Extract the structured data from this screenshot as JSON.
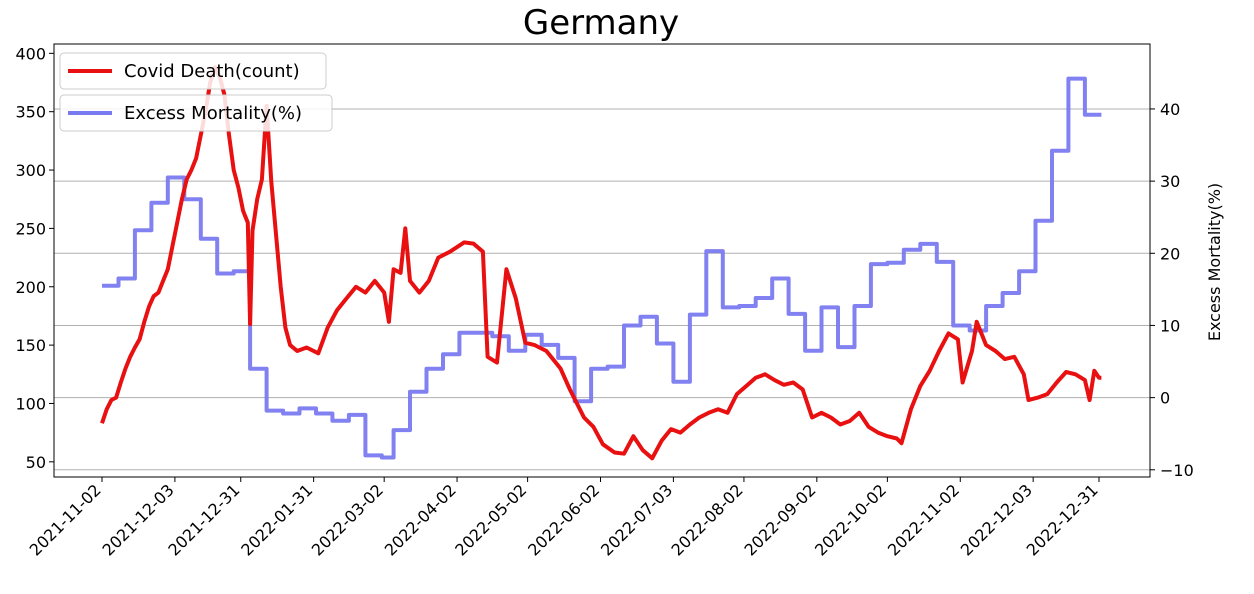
{
  "chart_data": {
    "type": "line",
    "title": "Germany",
    "xlabel": "",
    "ylabel_left": "",
    "ylabel_right": "Excess Mortality(%)",
    "ylim_left": [
      37,
      408
    ],
    "ylim_right": [
      -11,
      49
    ],
    "yticks_left": [
      50,
      100,
      150,
      200,
      250,
      300,
      350,
      400
    ],
    "yticks_right": [
      -10,
      0,
      10,
      20,
      30,
      40
    ],
    "grid": "horizontal gridlines at right-axis ticks",
    "legend_placement": "top-left",
    "x_tick_labels": [
      "2021-11-02",
      "2021-12-03",
      "2021-12-31",
      "2022-01-31",
      "2022-03-02",
      "2022-04-02",
      "2022-05-02",
      "2022-06-02",
      "2022-07-03",
      "2022-08-02",
      "2022-09-02",
      "2022-10-02",
      "2022-11-02",
      "2022-12-03",
      "2022-12-31"
    ],
    "series": [
      {
        "name": "Covid Death(count)",
        "axis": "left",
        "color": "#e81010",
        "points": [
          [
            "2021-11-02",
            83
          ],
          [
            "2021-11-04",
            95
          ],
          [
            "2021-11-06",
            103
          ],
          [
            "2021-11-08",
            105
          ],
          [
            "2021-11-10",
            118
          ],
          [
            "2021-11-12",
            130
          ],
          [
            "2021-11-14",
            140
          ],
          [
            "2021-11-16",
            148
          ],
          [
            "2021-11-18",
            155
          ],
          [
            "2021-11-20",
            170
          ],
          [
            "2021-11-22",
            183
          ],
          [
            "2021-11-24",
            192
          ],
          [
            "2021-11-26",
            195
          ],
          [
            "2021-11-28",
            205
          ],
          [
            "2021-11-30",
            215
          ],
          [
            "2021-12-02",
            235
          ],
          [
            "2021-12-04",
            255
          ],
          [
            "2021-12-06",
            275
          ],
          [
            "2021-12-08",
            292
          ],
          [
            "2021-12-10",
            300
          ],
          [
            "2021-12-12",
            310
          ],
          [
            "2021-12-14",
            330
          ],
          [
            "2021-12-16",
            350
          ],
          [
            "2021-12-18",
            375
          ],
          [
            "2021-12-20",
            388
          ],
          [
            "2021-12-22",
            380
          ],
          [
            "2021-12-24",
            365
          ],
          [
            "2021-12-26",
            330
          ],
          [
            "2021-12-28",
            300
          ],
          [
            "2021-12-30",
            285
          ],
          [
            "2022-01-01",
            265
          ],
          [
            "2022-01-03",
            255
          ],
          [
            "2022-01-04",
            168
          ],
          [
            "2022-01-05",
            248
          ],
          [
            "2022-01-07",
            275
          ],
          [
            "2022-01-09",
            292
          ],
          [
            "2022-01-11",
            355
          ],
          [
            "2022-01-13",
            290
          ],
          [
            "2022-01-15",
            245
          ],
          [
            "2022-01-17",
            200
          ],
          [
            "2022-01-19",
            165
          ],
          [
            "2022-01-21",
            150
          ],
          [
            "2022-01-24",
            145
          ],
          [
            "2022-01-28",
            148
          ],
          [
            "2022-02-02",
            143
          ],
          [
            "2022-02-06",
            165
          ],
          [
            "2022-02-10",
            180
          ],
          [
            "2022-02-14",
            190
          ],
          [
            "2022-02-18",
            200
          ],
          [
            "2022-02-22",
            195
          ],
          [
            "2022-02-26",
            205
          ],
          [
            "2022-03-02",
            195
          ],
          [
            "2022-03-04",
            170
          ],
          [
            "2022-03-06",
            215
          ],
          [
            "2022-03-09",
            212
          ],
          [
            "2022-03-11",
            250
          ],
          [
            "2022-03-13",
            205
          ],
          [
            "2022-03-17",
            195
          ],
          [
            "2022-03-21",
            205
          ],
          [
            "2022-03-25",
            225
          ],
          [
            "2022-03-30",
            230
          ],
          [
            "2022-04-05",
            238
          ],
          [
            "2022-04-09",
            237
          ],
          [
            "2022-04-13",
            230
          ],
          [
            "2022-04-15",
            140
          ],
          [
            "2022-04-19",
            135
          ],
          [
            "2022-04-23",
            215
          ],
          [
            "2022-04-27",
            190
          ],
          [
            "2022-05-01",
            152
          ],
          [
            "2022-05-05",
            150
          ],
          [
            "2022-05-10",
            145
          ],
          [
            "2022-05-16",
            130
          ],
          [
            "2022-05-20",
            112
          ],
          [
            "2022-05-26",
            88
          ],
          [
            "2022-05-30",
            80
          ],
          [
            "2022-06-03",
            65
          ],
          [
            "2022-06-08",
            58
          ],
          [
            "2022-06-12",
            57
          ],
          [
            "2022-06-16",
            72
          ],
          [
            "2022-06-20",
            60
          ],
          [
            "2022-06-24",
            53
          ],
          [
            "2022-06-28",
            68
          ],
          [
            "2022-07-02",
            78
          ],
          [
            "2022-07-06",
            75
          ],
          [
            "2022-07-10",
            82
          ],
          [
            "2022-07-14",
            88
          ],
          [
            "2022-07-18",
            92
          ],
          [
            "2022-07-22",
            95
          ],
          [
            "2022-07-26",
            92
          ],
          [
            "2022-07-30",
            108
          ],
          [
            "2022-08-03",
            115
          ],
          [
            "2022-08-07",
            122
          ],
          [
            "2022-08-11",
            125
          ],
          [
            "2022-08-15",
            120
          ],
          [
            "2022-08-19",
            116
          ],
          [
            "2022-08-23",
            118
          ],
          [
            "2022-08-27",
            112
          ],
          [
            "2022-08-31",
            88
          ],
          [
            "2022-09-04",
            92
          ],
          [
            "2022-09-08",
            88
          ],
          [
            "2022-09-12",
            82
          ],
          [
            "2022-09-16",
            85
          ],
          [
            "2022-09-20",
            92
          ],
          [
            "2022-09-24",
            80
          ],
          [
            "2022-09-28",
            75
          ],
          [
            "2022-10-02",
            72
          ],
          [
            "2022-10-06",
            70
          ],
          [
            "2022-10-08",
            66
          ],
          [
            "2022-10-12",
            95
          ],
          [
            "2022-10-16",
            115
          ],
          [
            "2022-10-20",
            128
          ],
          [
            "2022-10-24",
            145
          ],
          [
            "2022-10-28",
            160
          ],
          [
            "2022-11-01",
            155
          ],
          [
            "2022-11-03",
            118
          ],
          [
            "2022-11-07",
            145
          ],
          [
            "2022-11-09",
            170
          ],
          [
            "2022-11-13",
            150
          ],
          [
            "2022-11-17",
            145
          ],
          [
            "2022-11-21",
            138
          ],
          [
            "2022-11-25",
            140
          ],
          [
            "2022-11-29",
            125
          ],
          [
            "2022-12-01",
            103
          ],
          [
            "2022-12-05",
            105
          ],
          [
            "2022-12-09",
            108
          ],
          [
            "2022-12-13",
            118
          ],
          [
            "2022-12-17",
            127
          ],
          [
            "2022-12-21",
            125
          ],
          [
            "2022-12-25",
            120
          ],
          [
            "2022-12-27",
            103
          ],
          [
            "2022-12-29",
            128
          ],
          [
            "2022-12-31",
            122
          ],
          [
            "2023-01-01",
            122
          ]
        ]
      },
      {
        "name": "Excess Mortality(%)",
        "axis": "right",
        "color": "#7a7af0",
        "points": [
          [
            "2021-11-02",
            15.5
          ],
          [
            "2021-11-09",
            15.5
          ],
          [
            "2021-11-09",
            16.5
          ],
          [
            "2021-11-16",
            16.5
          ],
          [
            "2021-11-16",
            23.2
          ],
          [
            "2021-11-23",
            23.2
          ],
          [
            "2021-11-23",
            27
          ],
          [
            "2021-11-30",
            27
          ],
          [
            "2021-11-30",
            30.5
          ],
          [
            "2021-12-07",
            30.5
          ],
          [
            "2021-12-07",
            27.5
          ],
          [
            "2021-12-14",
            27.5
          ],
          [
            "2021-12-14",
            22
          ],
          [
            "2021-12-21",
            22
          ],
          [
            "2021-12-21",
            17.2
          ],
          [
            "2021-12-28",
            17.2
          ],
          [
            "2021-12-28",
            17.5
          ],
          [
            "2022-01-04",
            17.5
          ],
          [
            "2022-01-04",
            4
          ],
          [
            "2022-01-11",
            4
          ],
          [
            "2022-01-11",
            -1.8
          ],
          [
            "2022-01-18",
            -1.8
          ],
          [
            "2022-01-18",
            -2.2
          ],
          [
            "2022-01-25",
            -2.2
          ],
          [
            "2022-01-25",
            -1.5
          ],
          [
            "2022-02-01",
            -1.5
          ],
          [
            "2022-02-01",
            -2.2
          ],
          [
            "2022-02-08",
            -2.2
          ],
          [
            "2022-02-08",
            -3.2
          ],
          [
            "2022-02-15",
            -3.2
          ],
          [
            "2022-02-15",
            -2.4
          ],
          [
            "2022-02-22",
            -2.4
          ],
          [
            "2022-02-22",
            -8
          ],
          [
            "2022-03-01",
            -8
          ],
          [
            "2022-03-01",
            -8.3
          ],
          [
            "2022-03-06",
            -8.3
          ],
          [
            "2022-03-06",
            -4.5
          ],
          [
            "2022-03-13",
            -4.5
          ],
          [
            "2022-03-13",
            0.8
          ],
          [
            "2022-03-20",
            0.8
          ],
          [
            "2022-03-20",
            4
          ],
          [
            "2022-03-27",
            4
          ],
          [
            "2022-03-27",
            6
          ],
          [
            "2022-04-03",
            6
          ],
          [
            "2022-04-03",
            9
          ],
          [
            "2022-04-10",
            9
          ],
          [
            "2022-04-10",
            9
          ],
          [
            "2022-04-17",
            9
          ],
          [
            "2022-04-17",
            8.5
          ],
          [
            "2022-04-24",
            8.5
          ],
          [
            "2022-04-24",
            6.5
          ],
          [
            "2022-05-01",
            6.5
          ],
          [
            "2022-05-01",
            8.7
          ],
          [
            "2022-05-08",
            8.7
          ],
          [
            "2022-05-08",
            7.3
          ],
          [
            "2022-05-15",
            7.3
          ],
          [
            "2022-05-15",
            5.5
          ],
          [
            "2022-05-22",
            5.5
          ],
          [
            "2022-05-22",
            -0.5
          ],
          [
            "2022-05-29",
            -0.5
          ],
          [
            "2022-05-29",
            4
          ],
          [
            "2022-06-05",
            4
          ],
          [
            "2022-06-05",
            4.3
          ],
          [
            "2022-06-12",
            4.3
          ],
          [
            "2022-06-12",
            10
          ],
          [
            "2022-06-19",
            10
          ],
          [
            "2022-06-19",
            11.2
          ],
          [
            "2022-06-26",
            11.2
          ],
          [
            "2022-06-26",
            7.5
          ],
          [
            "2022-07-03",
            7.5
          ],
          [
            "2022-07-03",
            2.2
          ],
          [
            "2022-07-10",
            2.2
          ],
          [
            "2022-07-10",
            11.5
          ],
          [
            "2022-07-17",
            11.5
          ],
          [
            "2022-07-17",
            20.3
          ],
          [
            "2022-07-24",
            20.3
          ],
          [
            "2022-07-24",
            12.5
          ],
          [
            "2022-07-31",
            12.5
          ],
          [
            "2022-07-31",
            12.7
          ],
          [
            "2022-08-07",
            12.7
          ],
          [
            "2022-08-07",
            13.8
          ],
          [
            "2022-08-14",
            13.8
          ],
          [
            "2022-08-14",
            16.5
          ],
          [
            "2022-08-21",
            16.5
          ],
          [
            "2022-08-21",
            11.6
          ],
          [
            "2022-08-28",
            11.6
          ],
          [
            "2022-08-28",
            6.5
          ],
          [
            "2022-09-04",
            6.5
          ],
          [
            "2022-09-04",
            12.5
          ],
          [
            "2022-09-11",
            12.5
          ],
          [
            "2022-09-11",
            7
          ],
          [
            "2022-09-18",
            7
          ],
          [
            "2022-09-18",
            12.7
          ],
          [
            "2022-09-25",
            12.7
          ],
          [
            "2022-09-25",
            18.5
          ],
          [
            "2022-10-02",
            18.5
          ],
          [
            "2022-10-02",
            18.7
          ],
          [
            "2022-10-09",
            18.7
          ],
          [
            "2022-10-09",
            20.5
          ],
          [
            "2022-10-16",
            20.5
          ],
          [
            "2022-10-16",
            21.3
          ],
          [
            "2022-10-23",
            21.3
          ],
          [
            "2022-10-23",
            18.8
          ],
          [
            "2022-10-30",
            18.8
          ],
          [
            "2022-10-30",
            10
          ],
          [
            "2022-11-06",
            10
          ],
          [
            "2022-11-06",
            9.3
          ],
          [
            "2022-11-13",
            9.3
          ],
          [
            "2022-11-13",
            12.7
          ],
          [
            "2022-11-20",
            12.7
          ],
          [
            "2022-11-20",
            14.5
          ],
          [
            "2022-11-27",
            14.5
          ],
          [
            "2022-11-27",
            17.5
          ],
          [
            "2022-12-04",
            17.5
          ],
          [
            "2022-12-04",
            24.5
          ],
          [
            "2022-12-11",
            24.5
          ],
          [
            "2022-12-11",
            34.2
          ],
          [
            "2022-12-18",
            34.2
          ],
          [
            "2022-12-18",
            44.2
          ],
          [
            "2022-12-25",
            44.2
          ],
          [
            "2022-12-25",
            39.2
          ],
          [
            "2023-01-01",
            39.2
          ]
        ]
      }
    ]
  }
}
